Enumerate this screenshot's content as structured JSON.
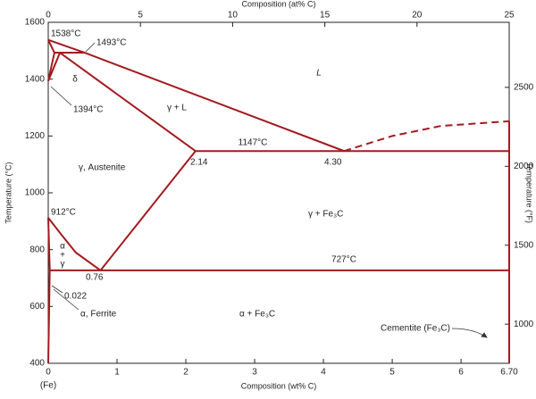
{
  "chart_data": {
    "type": "line",
    "color": "#a31a1f",
    "xlabel": "Composition (wt% C)",
    "x2label": "Composition (at% C)",
    "ylabel": "Temperature (°C)",
    "y2label": "Temperature (°F)",
    "xlim": [
      0,
      6.7
    ],
    "xticks": [
      0,
      1,
      2,
      3,
      4,
      5,
      6,
      {
        "value": 6.7,
        "label": "6.70"
      }
    ],
    "x2lim": [
      0,
      25
    ],
    "x2ticks": [
      0,
      5,
      10,
      15,
      20,
      25
    ],
    "ylim": [
      400,
      1600
    ],
    "yticks": [
      400,
      600,
      800,
      1000,
      1200,
      1400,
      1600
    ],
    "y2lim": [
      752,
      2912
    ],
    "y2ticks": [
      1000,
      1500,
      2000,
      2500
    ],
    "series": [
      {
        "x": [
          0,
          0.53,
          4.3
        ],
        "values": [
          1538,
          1493,
          1147
        ]
      },
      {
        "x": [
          0,
          0.09
        ],
        "values": [
          1538,
          1493
        ]
      },
      {
        "x": [
          0.09,
          0
        ],
        "values": [
          1493,
          1394
        ]
      },
      {
        "x": [
          0,
          0.17
        ],
        "values": [
          1394,
          1493
        ]
      },
      {
        "x": [
          0.09,
          0.53
        ],
        "values": [
          1493,
          1493
        ]
      },
      {
        "x": [
          0.17,
          2.14
        ],
        "values": [
          1493,
          1147
        ]
      },
      {
        "x": [
          2.14,
          6.7
        ],
        "values": [
          1147,
          1147
        ]
      },
      {
        "x": [
          4.3,
          5,
          5.7,
          6.7
        ],
        "values": [
          1147,
          1200,
          1235,
          1252
        ],
        "style": "dashed"
      },
      {
        "x": [
          2.14,
          0.76
        ],
        "values": [
          1147,
          727
        ]
      },
      {
        "x": [
          0,
          0.2,
          0.4,
          0.76
        ],
        "values": [
          912,
          850,
          790,
          727
        ]
      },
      {
        "x": [
          0,
          0.022
        ],
        "values": [
          912,
          727
        ]
      },
      {
        "x": [
          0.022,
          6.7
        ],
        "values": [
          727,
          727
        ]
      },
      {
        "x": [
          0.022,
          0
        ],
        "values": [
          727,
          400
        ]
      },
      {
        "x": [
          6.7,
          6.7
        ],
        "values": [
          400,
          1252
        ]
      }
    ],
    "annotations": [
      "1538°C",
      "1493°C",
      "L",
      "δ",
      "1394°C",
      "γ + L",
      "1147°C",
      "2.14",
      "4.30",
      "γ, Austenite",
      "912°C",
      "γ + Fe₃C",
      "α",
      "+",
      "γ",
      "727°C",
      "0.76",
      "0.022",
      "α, Ferrite",
      "α + Fe₃C",
      "Cementite (Fe₃C)",
      "(Fe)"
    ]
  }
}
